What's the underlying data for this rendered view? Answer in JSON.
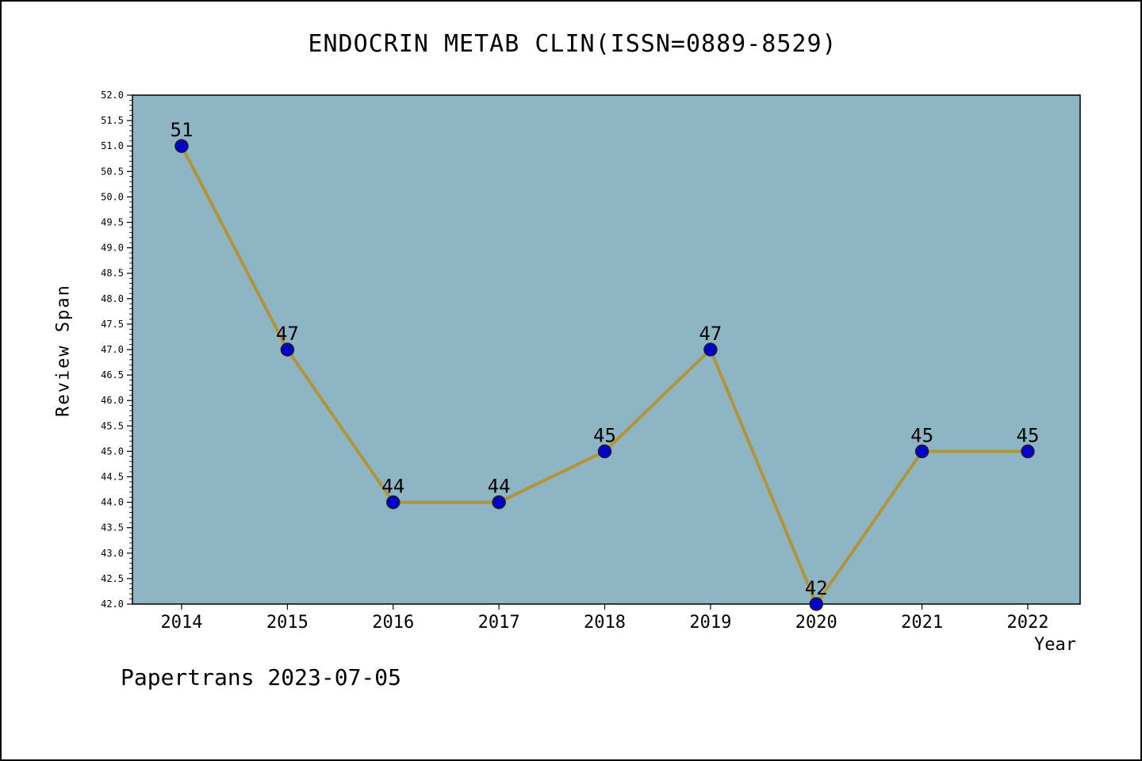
{
  "footer": "Papertrans 2023-07-05",
  "chart_data": {
    "type": "line",
    "title": "ENDOCRIN METAB CLIN(ISSN=0889-8529)",
    "xlabel": "Year",
    "ylabel": "Review Span",
    "x": [
      2014,
      2015,
      2016,
      2017,
      2018,
      2019,
      2020,
      2021,
      2022
    ],
    "series": [
      {
        "name": "Review Span",
        "values": [
          51,
          47,
          44,
          44,
          45,
          47,
          42,
          45,
          45
        ]
      }
    ],
    "ylim": [
      42.0,
      52.0
    ],
    "ytick_step": 0.5,
    "minor_tick_step": 0.1,
    "grid": false,
    "legend": "none",
    "colors": {
      "plot_background": "#8db5c4",
      "line": "#b2943b",
      "marker_fill": "#0000cd",
      "marker_edge": "#202020",
      "axis": "#000000"
    }
  }
}
